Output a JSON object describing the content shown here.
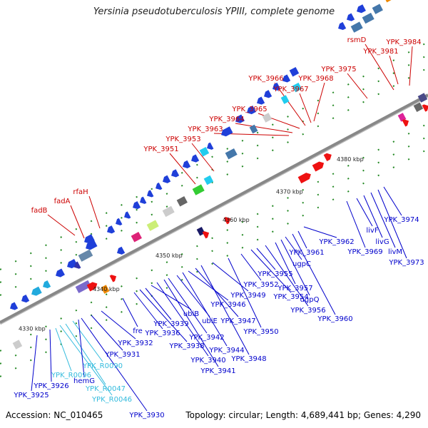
{
  "title": "Yersinia pseudotuberculosis YPIII, complete genome",
  "footer": {
    "accession": "Accession: NC_010465",
    "summary": "Topology: circular; Length: 4,689,441 bp; Genes: 4,290"
  },
  "colors": {
    "forward_label": "#cc0000",
    "reverse_label": "#0000cc",
    "rna_label": "#33bbdd",
    "backbone": "#9a9a9a",
    "tick": "#228822"
  },
  "ticks": [
    "4330 kbp",
    "4340 kbp",
    "4350 kbp",
    "4360 kbp",
    "4370 kbp",
    "4380 kbp"
  ],
  "top_labels": [
    "fadB",
    "fadA",
    "rfaH",
    "YPK_3951",
    "YPK_3953",
    "YPK_3963",
    "YPK_3964",
    "YPK_3965",
    "YPK_3966",
    "YPK_3967",
    "YPK_3968",
    "YPK_3975",
    "rsmD",
    "YPK_3981",
    "YPK_3984"
  ],
  "bottom_labels": [
    "YPK_3925",
    "YPK_3926",
    "YPK_R0096",
    "YPK_R0047",
    "YPK_R0046",
    "YPK_R0090",
    "hemG",
    "YPK_3930",
    "YPK_3931",
    "YPK_3932",
    "fre",
    "YPK_3936",
    "YPK_3938",
    "YPK_3939",
    "ubiB",
    "YPK_3940",
    "YPK_3941",
    "YPK_3942",
    "ubiE",
    "YPK_3944",
    "YPK_3946",
    "YPK_3947",
    "YPK_3948",
    "YPK_3949",
    "YPK_3950",
    "YPK_3952",
    "YPK_3954",
    "YPK_3955",
    "YPK_3956",
    "YPK_3957",
    "ugpQ",
    "ugpC",
    "YPK_3960",
    "YPK_3961",
    "YPK_3962",
    "YPK_3969",
    "livF",
    "livG",
    "livM",
    "YPK_3973",
    "YPK_3974"
  ]
}
